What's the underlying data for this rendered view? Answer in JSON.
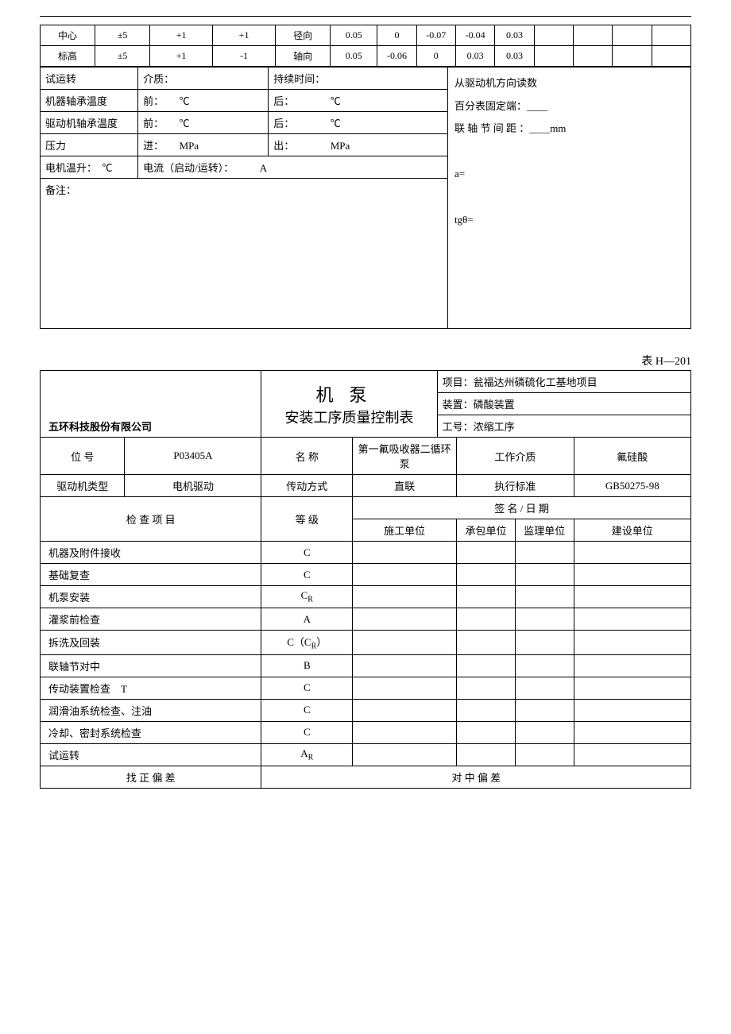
{
  "top_rows": [
    {
      "label": "中心",
      "tol": "±5",
      "a": "+1",
      "b": "+1",
      "dir": "径向",
      "val": "0.05",
      "c1": "0",
      "c2": "-0.07",
      "c3": "-0.04",
      "c4": "0.03",
      "c5": "",
      "c6": "",
      "c7": "",
      "c8": ""
    },
    {
      "label": "标高",
      "tol": "±5",
      "a": "+1",
      "b": "-1",
      "dir": "轴向",
      "val": "0.05",
      "c1": "-0.06",
      "c2": "0",
      "c3": "0.03",
      "c4": "0.03",
      "c5": "",
      "c6": "",
      "c7": "",
      "c8": ""
    }
  ],
  "trial": {
    "trial": "试运转",
    "medium": "介质：",
    "duration": "持续时间：",
    "bearing": "机器轴承温度",
    "front": "前：",
    "front_unit": "℃",
    "rear": "后：",
    "rear_unit": "℃",
    "driver_bearing": "驱动机轴承温度",
    "front2": "前：",
    "front2_unit": "℃",
    "rear2": "后：",
    "rear2_unit": "℃",
    "pressure": "压力",
    "inlet": "进：",
    "inlet_unit": "MPa",
    "outlet": "出：",
    "outlet_unit": "MPa",
    "motor_rise": "电机温升：",
    "motor_unit": "℃",
    "current": "电流（启动/运转）：",
    "current_unit": "A",
    "remarks": "备注："
  },
  "side": {
    "l1": "从驱动机方向读数",
    "l2": "百分表固定端：____",
    "l3": "联 轴 节 间 距 ：____mm",
    "l4": "a=",
    "l5": "tgθ="
  },
  "second": {
    "table_no": "表 H—201",
    "company": "五环科技股份有限公司",
    "title_main": "机泵",
    "title_sub": "安装工序质量控制表",
    "project": "项目：瓮福达州磷硫化工基地项目",
    "unit": "装置：磷酸装置",
    "wono": "工号：浓缩工序",
    "pos_label": "位 号",
    "pos_val": "P03405A",
    "name_label": "名 称",
    "name_val": "第一氟吸收器二循环泵",
    "medium_label": "工作介质",
    "medium_val": "氟硅酸",
    "driver_label": "驱动机类型",
    "driver_val": "电机驱动",
    "trans_label": "传动方式",
    "trans_val": "直联",
    "std_label": "执行标准",
    "std_val": "GB50275-98",
    "check_header": "检 查 项 目",
    "grade_header": "等 级",
    "sign_header": "签 名 / 日 期",
    "unit1": "施工单位",
    "unit2": "承包单位",
    "unit3": "监理单位",
    "unit4": "建设单位",
    "items": [
      {
        "name": "机器及附件接收",
        "grade": "C"
      },
      {
        "name": "基础复查",
        "grade": "C"
      },
      {
        "name": "机泵安装",
        "grade": "C",
        "sub": "R"
      },
      {
        "name": "灌浆前检查",
        "grade": "A"
      },
      {
        "name": "拆洗及回装",
        "grade": "C（C",
        "sub": "R",
        "tail": "）"
      },
      {
        "name": "联轴节对中",
        "grade": "B"
      },
      {
        "name": "传动装置检查　T",
        "grade": "C"
      },
      {
        "name": "润滑油系统检查、注油",
        "grade": "C"
      },
      {
        "name": "冷却、密封系统检查",
        "grade": "C"
      },
      {
        "name": "试运转",
        "grade": "A",
        "sub": "R"
      }
    ],
    "foot_left": "找 正 偏 差",
    "foot_right": "对 中 偏 差"
  }
}
